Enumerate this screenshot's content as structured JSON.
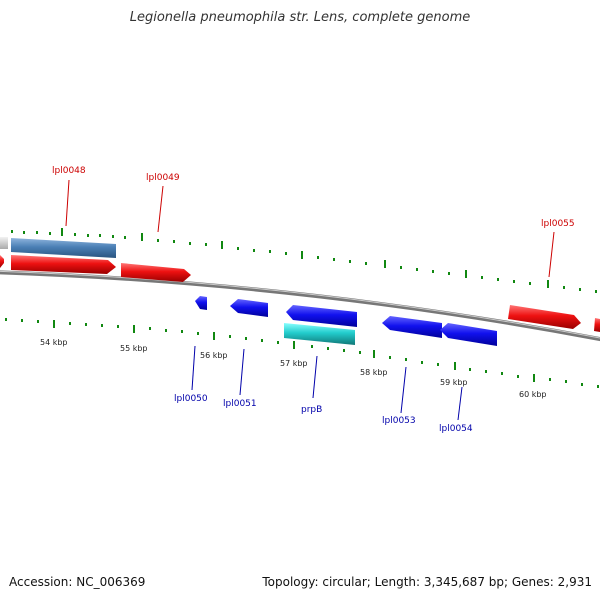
{
  "title": "Legionella pneumophila str. Lens, complete genome",
  "footer": {
    "accession": "Accession: NC_006369",
    "summary": "Topology: circular; Length: 3,345,687 bp; Genes: 2,931"
  },
  "colors": {
    "forward_gene": "#ee1111",
    "reverse_gene": "#1111ee",
    "rna_gene": "#22cccc",
    "other_gene": "#4a7fb5",
    "label_forward": "#cc0000",
    "label_reverse": "#0000aa",
    "tick": "#118811",
    "backbone": "#888888"
  },
  "genome": {
    "topology": "circular",
    "length_bp": 3345687,
    "gene_count": 2931,
    "scale_labels": [
      "54 kbp",
      "55 kbp",
      "56 kbp",
      "57 kbp",
      "58 kbp",
      "59 kbp",
      "60 kbp"
    ]
  },
  "genes": [
    {
      "label": "",
      "strand": "+",
      "type": "other"
    },
    {
      "label": "lpl0048",
      "strand": "+",
      "type": "other"
    },
    {
      "label": "",
      "strand": "+",
      "type": "cds"
    },
    {
      "label": "",
      "strand": "+",
      "type": "cds"
    },
    {
      "label": "lpl0049",
      "strand": "+",
      "type": "cds"
    },
    {
      "label": "lpl0050",
      "strand": "-",
      "type": "cds"
    },
    {
      "label": "lpl0051",
      "strand": "-",
      "type": "cds"
    },
    {
      "label": "",
      "strand": "-",
      "type": "cds"
    },
    {
      "label": "prpB",
      "strand": "-",
      "type": "rna"
    },
    {
      "label": "lpl0053",
      "strand": "-",
      "type": "cds"
    },
    {
      "label": "lpl0054",
      "strand": "-",
      "type": "cds"
    },
    {
      "label": "lpl0055",
      "strand": "+",
      "type": "cds"
    },
    {
      "label": "",
      "strand": "+",
      "type": "cds"
    }
  ]
}
